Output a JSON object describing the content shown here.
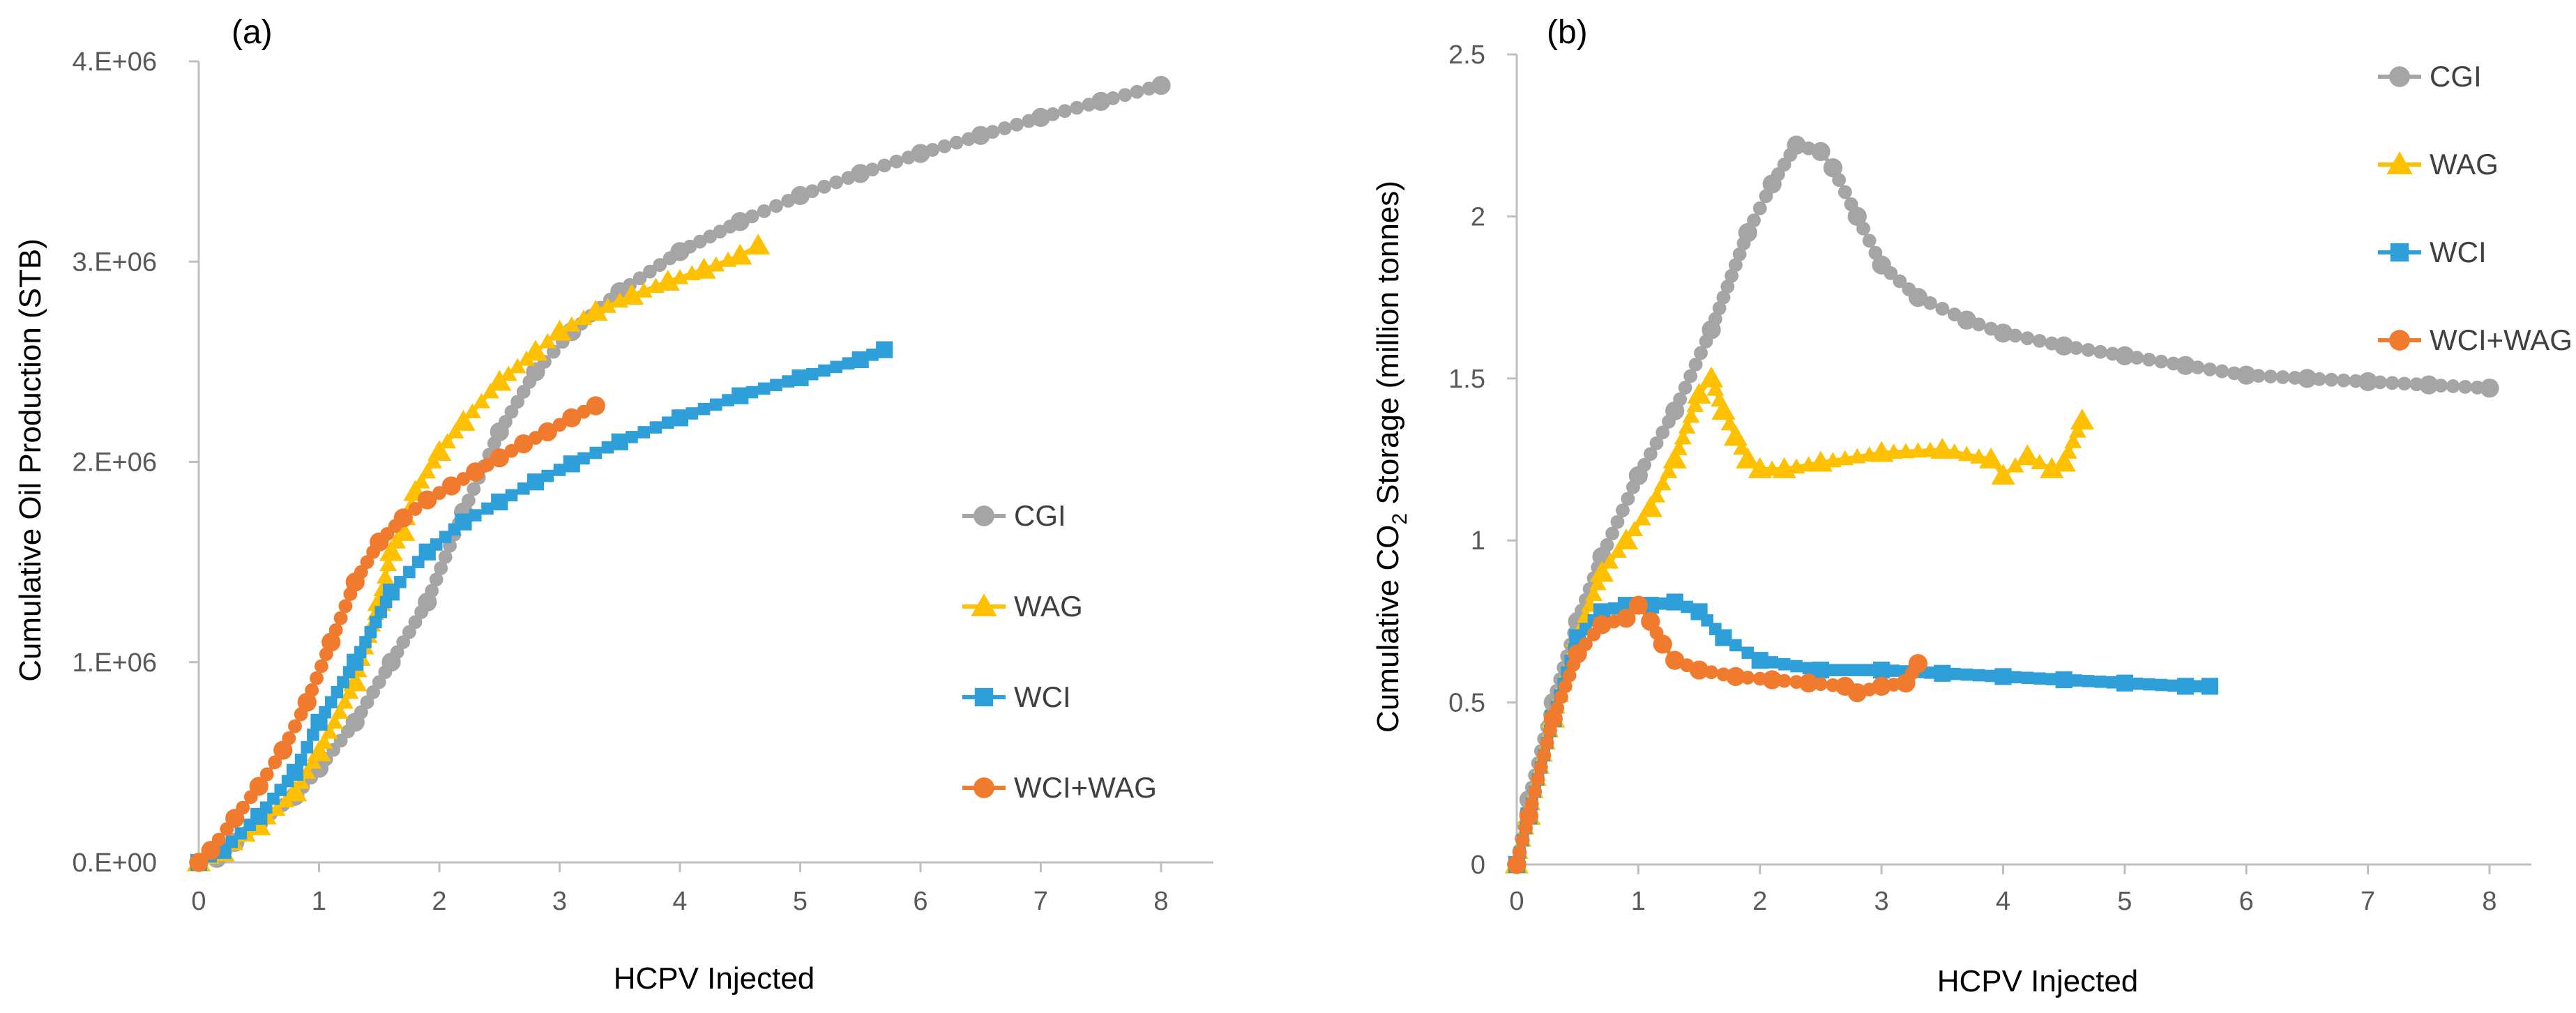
{
  "chart_data": [
    {
      "type": "line",
      "panel_label": "(a)",
      "xlabel": "HCPV Injected",
      "ylabel": "Cumulative Oil Production (STB)",
      "xlim": [
        0,
        8
      ],
      "ylim": [
        0,
        4000000
      ],
      "x_ticks": [
        0,
        1,
        2,
        3,
        4,
        5,
        6,
        7,
        8
      ],
      "x_tick_labels": [
        "0",
        "1",
        "2",
        "3",
        "4",
        "5",
        "6",
        "7",
        "8"
      ],
      "y_ticks": [
        0,
        1000000,
        2000000,
        3000000,
        4000000
      ],
      "y_tick_labels": [
        "0.E+00",
        "1.E+06",
        "2.E+06",
        "3.E+06",
        "4.E+06"
      ],
      "grid": false,
      "legend": "right-middle",
      "series": [
        {
          "name": "CGI",
          "color": "#a5a5a5",
          "marker": "circle",
          "x": [
            0,
            0.15,
            0.3,
            0.5,
            0.8,
            1.0,
            1.3,
            1.6,
            1.9,
            2.2,
            2.5,
            2.8,
            3.1,
            3.5,
            4.0,
            4.5,
            5.0,
            5.5,
            6.0,
            6.5,
            7.0,
            7.5,
            8.0
          ],
          "y": [
            0,
            20000,
            100000,
            200000,
            330000,
            470000,
            700000,
            1000000,
            1300000,
            1750000,
            2150000,
            2450000,
            2650000,
            2850000,
            3050000,
            3200000,
            3330000,
            3440000,
            3540000,
            3630000,
            3720000,
            3800000,
            3880000
          ]
        },
        {
          "name": "WAG",
          "color": "#ffc000",
          "marker": "triangle",
          "x": [
            0,
            0.2,
            0.5,
            0.8,
            1.0,
            1.3,
            1.5,
            1.6,
            1.7,
            1.8,
            2.0,
            2.2,
            2.5,
            2.8,
            3.0,
            3.3,
            3.6,
            3.9,
            4.2,
            4.5,
            4.65
          ],
          "y": [
            0,
            50000,
            180000,
            350000,
            550000,
            900000,
            1300000,
            1550000,
            1650000,
            1850000,
            2050000,
            2200000,
            2400000,
            2550000,
            2650000,
            2750000,
            2830000,
            2900000,
            2960000,
            3030000,
            3080000
          ]
        },
        {
          "name": "WCI",
          "color": "#2e9fd8",
          "marker": "square",
          "x": [
            0,
            0.2,
            0.5,
            0.8,
            1.0,
            1.3,
            1.6,
            1.9,
            2.2,
            2.5,
            2.8,
            3.1,
            3.5,
            4.0,
            4.5,
            5.0,
            5.5,
            5.7
          ],
          "y": [
            0,
            60000,
            230000,
            450000,
            700000,
            1000000,
            1350000,
            1550000,
            1700000,
            1800000,
            1900000,
            1990000,
            2100000,
            2220000,
            2330000,
            2420000,
            2510000,
            2560000
          ]
        },
        {
          "name": "WCI+WAG",
          "color": "#f07b2e",
          "marker": "circle",
          "x": [
            0,
            0.1,
            0.3,
            0.5,
            0.7,
            0.9,
            1.1,
            1.3,
            1.5,
            1.7,
            1.9,
            2.1,
            2.3,
            2.5,
            2.7,
            2.9,
            3.1,
            3.3
          ],
          "y": [
            0,
            60000,
            220000,
            380000,
            560000,
            800000,
            1100000,
            1400000,
            1600000,
            1720000,
            1810000,
            1880000,
            1950000,
            2020000,
            2090000,
            2150000,
            2220000,
            2280000
          ]
        }
      ]
    },
    {
      "type": "line",
      "panel_label": "(b)",
      "xlabel": "HCPV Injected",
      "ylabel_parts": [
        "Cumulative CO",
        "2",
        " Storage (million tonnes)"
      ],
      "xlim": [
        0,
        8
      ],
      "ylim": [
        0,
        2.5
      ],
      "x_ticks": [
        0,
        1,
        2,
        3,
        4,
        5,
        6,
        7,
        8
      ],
      "x_tick_labels": [
        "0",
        "1",
        "2",
        "3",
        "4",
        "5",
        "6",
        "7",
        "8"
      ],
      "y_ticks": [
        0,
        0.5,
        1,
        1.5,
        2,
        2.5
      ],
      "y_tick_labels": [
        "0",
        "0.5",
        "1",
        "1.5",
        "2",
        "2.5"
      ],
      "grid": false,
      "legend": "top-right",
      "series": [
        {
          "name": "CGI",
          "color": "#a5a5a5",
          "marker": "circle",
          "x": [
            0,
            0.1,
            0.3,
            0.5,
            0.7,
            1.0,
            1.3,
            1.6,
            1.9,
            2.1,
            2.3,
            2.5,
            2.6,
            2.8,
            3.0,
            3.3,
            3.7,
            4.0,
            4.5,
            5.0,
            5.5,
            6.0,
            6.5,
            7.0,
            7.5,
            8.0
          ],
          "y": [
            0,
            0.2,
            0.5,
            0.75,
            0.95,
            1.2,
            1.4,
            1.65,
            1.95,
            2.1,
            2.22,
            2.2,
            2.15,
            2.0,
            1.85,
            1.75,
            1.68,
            1.64,
            1.6,
            1.57,
            1.54,
            1.51,
            1.5,
            1.49,
            1.48,
            1.47
          ]
        },
        {
          "name": "WAG",
          "color": "#ffc000",
          "marker": "triangle",
          "x": [
            0,
            0.1,
            0.3,
            0.5,
            0.7,
            0.9,
            1.1,
            1.3,
            1.5,
            1.6,
            1.7,
            1.8,
            1.9,
            2.0,
            2.2,
            2.5,
            3.0,
            3.5,
            3.9,
            4.0,
            4.2,
            4.4,
            4.5,
            4.65
          ],
          "y": [
            0,
            0.15,
            0.45,
            0.7,
            0.9,
            1.0,
            1.1,
            1.25,
            1.45,
            1.5,
            1.4,
            1.32,
            1.25,
            1.22,
            1.22,
            1.24,
            1.27,
            1.28,
            1.25,
            1.2,
            1.26,
            1.22,
            1.24,
            1.37
          ]
        },
        {
          "name": "WCI",
          "color": "#2e9fd8",
          "marker": "square",
          "x": [
            0,
            0.1,
            0.3,
            0.5,
            0.7,
            0.9,
            1.1,
            1.3,
            1.5,
            1.7,
            2.0,
            2.5,
            3.0,
            3.5,
            4.0,
            4.5,
            5.0,
            5.5,
            5.7
          ],
          "y": [
            0,
            0.15,
            0.45,
            0.7,
            0.78,
            0.8,
            0.8,
            0.81,
            0.78,
            0.7,
            0.63,
            0.6,
            0.6,
            0.59,
            0.58,
            0.57,
            0.56,
            0.55,
            0.55
          ]
        },
        {
          "name": "WCI+WAG",
          "color": "#f07b2e",
          "marker": "circle",
          "x": [
            0,
            0.1,
            0.3,
            0.5,
            0.7,
            0.9,
            1.0,
            1.1,
            1.2,
            1.3,
            1.5,
            1.8,
            2.1,
            2.4,
            2.7,
            2.8,
            3.0,
            3.2,
            3.3
          ],
          "y": [
            0,
            0.15,
            0.45,
            0.65,
            0.74,
            0.76,
            0.8,
            0.75,
            0.68,
            0.63,
            0.6,
            0.58,
            0.57,
            0.56,
            0.55,
            0.53,
            0.55,
            0.56,
            0.62
          ]
        }
      ]
    }
  ]
}
